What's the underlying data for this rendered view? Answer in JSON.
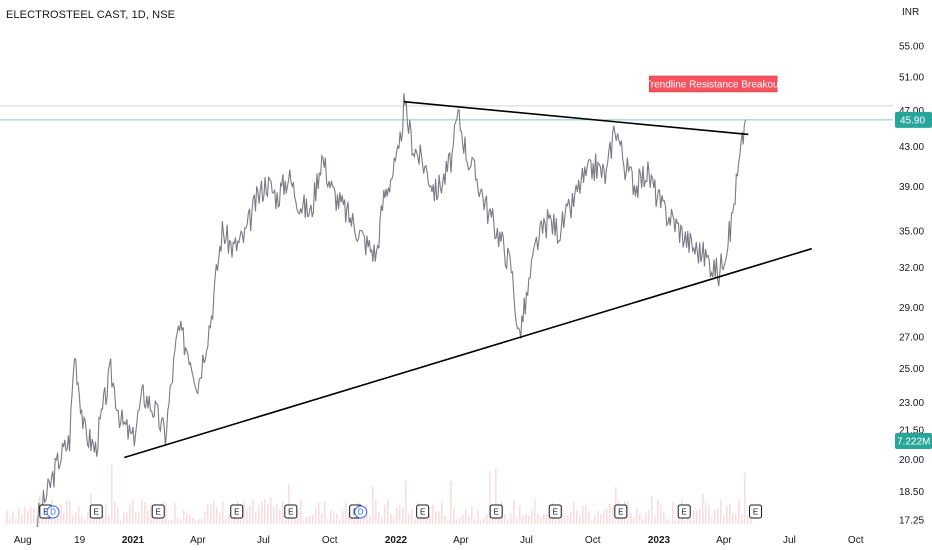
{
  "header": {
    "title": "ELECTROSTEEL CAST, 1D, NSE"
  },
  "chart_data": {
    "type": "line",
    "title": "ELECTROSTEEL CAST, 1D, NSE",
    "currency_label": "INR",
    "y_scale": "log",
    "y_ticks": [
      "55.00",
      "51.00",
      "47.00",
      "43.00",
      "39.00",
      "35.00",
      "32.00",
      "29.00",
      "27.00",
      "25.00",
      "23.00",
      "21.50",
      "20.00",
      "18.50",
      "17.25"
    ],
    "x_ticks": [
      {
        "label": "Aug",
        "date": "2020-08-01",
        "bold": false
      },
      {
        "label": "19",
        "date": "2020-10-19",
        "bold": false
      },
      {
        "label": "2021",
        "date": "2021-01-01",
        "bold": true
      },
      {
        "label": "Apr",
        "date": "2021-04-01",
        "bold": false
      },
      {
        "label": "Jul",
        "date": "2021-07-01",
        "bold": false
      },
      {
        "label": "Oct",
        "date": "2021-10-01",
        "bold": false
      },
      {
        "label": "2022",
        "date": "2022-01-01",
        "bold": true
      },
      {
        "label": "Apr",
        "date": "2022-04-01",
        "bold": false
      },
      {
        "label": "Jul",
        "date": "2022-07-01",
        "bold": false
      },
      {
        "label": "Oct",
        "date": "2022-10-01",
        "bold": false
      },
      {
        "label": "2023",
        "date": "2023-01-01",
        "bold": true
      },
      {
        "label": "Apr",
        "date": "2023-04-01",
        "bold": false
      },
      {
        "label": "Jul",
        "date": "2023-07-01",
        "bold": false
      },
      {
        "label": "Oct",
        "date": "2023-10-01",
        "bold": false
      }
    ],
    "price_series": [
      [
        "2020-08-20",
        17.2
      ],
      [
        "2020-09-05",
        18.5
      ],
      [
        "2020-09-20",
        20.0
      ],
      [
        "2020-10-05",
        21.0
      ],
      [
        "2020-10-12",
        26.0
      ],
      [
        "2020-10-25",
        21.5
      ],
      [
        "2020-11-10",
        20.5
      ],
      [
        "2020-12-01",
        24.8
      ],
      [
        "2020-12-15",
        22.0
      ],
      [
        "2021-01-01",
        21.0
      ],
      [
        "2021-01-15",
        23.5
      ],
      [
        "2021-02-01",
        22.5
      ],
      [
        "2021-02-15",
        21.2
      ],
      [
        "2021-03-05",
        27.5
      ],
      [
        "2021-03-20",
        26.0
      ],
      [
        "2021-04-01",
        24.0
      ],
      [
        "2021-04-20",
        28.5
      ],
      [
        "2021-05-05",
        35.0
      ],
      [
        "2021-05-20",
        33.5
      ],
      [
        "2021-06-05",
        34.5
      ],
      [
        "2021-06-20",
        37.5
      ],
      [
        "2021-07-05",
        39.5
      ],
      [
        "2021-07-20",
        38.0
      ],
      [
        "2021-08-05",
        40.0
      ],
      [
        "2021-08-20",
        37.5
      ],
      [
        "2021-09-05",
        36.5
      ],
      [
        "2021-09-20",
        42.0
      ],
      [
        "2021-10-05",
        38.5
      ],
      [
        "2021-10-20",
        37.0
      ],
      [
        "2021-11-05",
        35.5
      ],
      [
        "2021-11-20",
        34.0
      ],
      [
        "2021-12-05",
        33.0
      ],
      [
        "2021-12-15",
        38.0
      ],
      [
        "2022-01-05",
        42.0
      ],
      [
        "2022-01-12",
        47.5
      ],
      [
        "2022-01-25",
        43.0
      ],
      [
        "2022-02-10",
        41.0
      ],
      [
        "2022-02-25",
        38.5
      ],
      [
        "2022-03-10",
        40.0
      ],
      [
        "2022-03-20",
        42.0
      ],
      [
        "2022-03-28",
        46.5
      ],
      [
        "2022-04-10",
        42.0
      ],
      [
        "2022-04-25",
        39.5
      ],
      [
        "2022-05-10",
        36.5
      ],
      [
        "2022-05-25",
        34.5
      ],
      [
        "2022-06-10",
        32.0
      ],
      [
        "2022-06-20",
        27.0
      ],
      [
        "2022-07-01",
        29.5
      ],
      [
        "2022-07-15",
        34.0
      ],
      [
        "2022-08-01",
        36.0
      ],
      [
        "2022-08-15",
        35.0
      ],
      [
        "2022-09-01",
        37.0
      ],
      [
        "2022-09-15",
        39.5
      ],
      [
        "2022-10-05",
        41.0
      ],
      [
        "2022-10-20",
        40.0
      ],
      [
        "2022-11-01",
        45.5
      ],
      [
        "2022-11-15",
        41.0
      ],
      [
        "2022-12-01",
        39.0
      ],
      [
        "2022-12-15",
        40.5
      ],
      [
        "2023-01-05",
        37.0
      ],
      [
        "2023-01-20",
        36.0
      ],
      [
        "2023-02-05",
        34.5
      ],
      [
        "2023-02-20",
        33.5
      ],
      [
        "2023-03-05",
        33.0
      ],
      [
        "2023-03-25",
        31.5
      ],
      [
        "2023-04-10",
        35.0
      ],
      [
        "2023-04-20",
        40.0
      ],
      [
        "2023-05-01",
        45.9
      ]
    ],
    "trendlines": [
      {
        "name": "resistance",
        "points": [
          [
            "2022-01-12",
            48.0
          ],
          [
            "2023-05-05",
            44.3
          ]
        ]
      },
      {
        "name": "support",
        "points": [
          [
            "2020-12-20",
            20.1
          ],
          [
            "2023-08-01",
            33.5
          ]
        ]
      }
    ],
    "last_price": {
      "value": 45.9,
      "label": "45.90"
    },
    "volume_label": "7.222M",
    "annotation": {
      "text": "Trendline Resistance Breakout",
      "date": "2023-03-20",
      "price": 50.0
    },
    "events": [
      {
        "type": "E",
        "date": "2020-09-02"
      },
      {
        "type": "D",
        "date": "2020-09-12"
      },
      {
        "type": "E",
        "date": "2020-11-11"
      },
      {
        "type": "E",
        "date": "2021-02-05"
      },
      {
        "type": "E",
        "date": "2021-05-25"
      },
      {
        "type": "E",
        "date": "2021-08-08"
      },
      {
        "type": "E",
        "date": "2021-11-06"
      },
      {
        "type": "D",
        "date": "2021-11-13"
      },
      {
        "type": "E",
        "date": "2022-02-07"
      },
      {
        "type": "E",
        "date": "2022-05-20"
      },
      {
        "type": "E",
        "date": "2022-08-10"
      },
      {
        "type": "E",
        "date": "2022-11-09"
      },
      {
        "type": "E",
        "date": "2023-02-05"
      },
      {
        "type": "E",
        "date": "2023-05-15"
      }
    ],
    "colors": {
      "price": "#787b86",
      "trendline": "#000000",
      "last_price_tag": "#26a69a",
      "annotation_bg": "#f7525f",
      "annotation_fg": "#ffffff",
      "grid": "#f0f3fa",
      "volume": "#f2c2c5",
      "event_border": "#131722",
      "event_dividend": "#2962ff"
    }
  }
}
